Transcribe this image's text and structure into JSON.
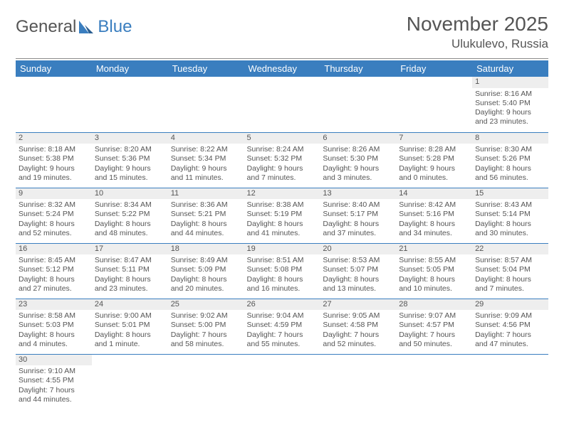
{
  "logo": {
    "text1": "General",
    "text2": "Blue"
  },
  "title": "November 2025",
  "location": "Ulukulevo, Russia",
  "colors": {
    "header_bg": "#3a7ebf",
    "header_text": "#ffffff",
    "body_text": "#555555",
    "daynum_bg": "#eeeeee",
    "rule": "#3a7ebf"
  },
  "weekdays": [
    "Sunday",
    "Monday",
    "Tuesday",
    "Wednesday",
    "Thursday",
    "Friday",
    "Saturday"
  ],
  "weeks": [
    [
      null,
      null,
      null,
      null,
      null,
      null,
      {
        "n": "1",
        "sr": "Sunrise: 8:16 AM",
        "ss": "Sunset: 5:40 PM",
        "dl": "Daylight: 9 hours and 23 minutes."
      }
    ],
    [
      {
        "n": "2",
        "sr": "Sunrise: 8:18 AM",
        "ss": "Sunset: 5:38 PM",
        "dl": "Daylight: 9 hours and 19 minutes."
      },
      {
        "n": "3",
        "sr": "Sunrise: 8:20 AM",
        "ss": "Sunset: 5:36 PM",
        "dl": "Daylight: 9 hours and 15 minutes."
      },
      {
        "n": "4",
        "sr": "Sunrise: 8:22 AM",
        "ss": "Sunset: 5:34 PM",
        "dl": "Daylight: 9 hours and 11 minutes."
      },
      {
        "n": "5",
        "sr": "Sunrise: 8:24 AM",
        "ss": "Sunset: 5:32 PM",
        "dl": "Daylight: 9 hours and 7 minutes."
      },
      {
        "n": "6",
        "sr": "Sunrise: 8:26 AM",
        "ss": "Sunset: 5:30 PM",
        "dl": "Daylight: 9 hours and 3 minutes."
      },
      {
        "n": "7",
        "sr": "Sunrise: 8:28 AM",
        "ss": "Sunset: 5:28 PM",
        "dl": "Daylight: 9 hours and 0 minutes."
      },
      {
        "n": "8",
        "sr": "Sunrise: 8:30 AM",
        "ss": "Sunset: 5:26 PM",
        "dl": "Daylight: 8 hours and 56 minutes."
      }
    ],
    [
      {
        "n": "9",
        "sr": "Sunrise: 8:32 AM",
        "ss": "Sunset: 5:24 PM",
        "dl": "Daylight: 8 hours and 52 minutes."
      },
      {
        "n": "10",
        "sr": "Sunrise: 8:34 AM",
        "ss": "Sunset: 5:22 PM",
        "dl": "Daylight: 8 hours and 48 minutes."
      },
      {
        "n": "11",
        "sr": "Sunrise: 8:36 AM",
        "ss": "Sunset: 5:21 PM",
        "dl": "Daylight: 8 hours and 44 minutes."
      },
      {
        "n": "12",
        "sr": "Sunrise: 8:38 AM",
        "ss": "Sunset: 5:19 PM",
        "dl": "Daylight: 8 hours and 41 minutes."
      },
      {
        "n": "13",
        "sr": "Sunrise: 8:40 AM",
        "ss": "Sunset: 5:17 PM",
        "dl": "Daylight: 8 hours and 37 minutes."
      },
      {
        "n": "14",
        "sr": "Sunrise: 8:42 AM",
        "ss": "Sunset: 5:16 PM",
        "dl": "Daylight: 8 hours and 34 minutes."
      },
      {
        "n": "15",
        "sr": "Sunrise: 8:43 AM",
        "ss": "Sunset: 5:14 PM",
        "dl": "Daylight: 8 hours and 30 minutes."
      }
    ],
    [
      {
        "n": "16",
        "sr": "Sunrise: 8:45 AM",
        "ss": "Sunset: 5:12 PM",
        "dl": "Daylight: 8 hours and 27 minutes."
      },
      {
        "n": "17",
        "sr": "Sunrise: 8:47 AM",
        "ss": "Sunset: 5:11 PM",
        "dl": "Daylight: 8 hours and 23 minutes."
      },
      {
        "n": "18",
        "sr": "Sunrise: 8:49 AM",
        "ss": "Sunset: 5:09 PM",
        "dl": "Daylight: 8 hours and 20 minutes."
      },
      {
        "n": "19",
        "sr": "Sunrise: 8:51 AM",
        "ss": "Sunset: 5:08 PM",
        "dl": "Daylight: 8 hours and 16 minutes."
      },
      {
        "n": "20",
        "sr": "Sunrise: 8:53 AM",
        "ss": "Sunset: 5:07 PM",
        "dl": "Daylight: 8 hours and 13 minutes."
      },
      {
        "n": "21",
        "sr": "Sunrise: 8:55 AM",
        "ss": "Sunset: 5:05 PM",
        "dl": "Daylight: 8 hours and 10 minutes."
      },
      {
        "n": "22",
        "sr": "Sunrise: 8:57 AM",
        "ss": "Sunset: 5:04 PM",
        "dl": "Daylight: 8 hours and 7 minutes."
      }
    ],
    [
      {
        "n": "23",
        "sr": "Sunrise: 8:58 AM",
        "ss": "Sunset: 5:03 PM",
        "dl": "Daylight: 8 hours and 4 minutes."
      },
      {
        "n": "24",
        "sr": "Sunrise: 9:00 AM",
        "ss": "Sunset: 5:01 PM",
        "dl": "Daylight: 8 hours and 1 minute."
      },
      {
        "n": "25",
        "sr": "Sunrise: 9:02 AM",
        "ss": "Sunset: 5:00 PM",
        "dl": "Daylight: 7 hours and 58 minutes."
      },
      {
        "n": "26",
        "sr": "Sunrise: 9:04 AM",
        "ss": "Sunset: 4:59 PM",
        "dl": "Daylight: 7 hours and 55 minutes."
      },
      {
        "n": "27",
        "sr": "Sunrise: 9:05 AM",
        "ss": "Sunset: 4:58 PM",
        "dl": "Daylight: 7 hours and 52 minutes."
      },
      {
        "n": "28",
        "sr": "Sunrise: 9:07 AM",
        "ss": "Sunset: 4:57 PM",
        "dl": "Daylight: 7 hours and 50 minutes."
      },
      {
        "n": "29",
        "sr": "Sunrise: 9:09 AM",
        "ss": "Sunset: 4:56 PM",
        "dl": "Daylight: 7 hours and 47 minutes."
      }
    ],
    [
      {
        "n": "30",
        "sr": "Sunrise: 9:10 AM",
        "ss": "Sunset: 4:55 PM",
        "dl": "Daylight: 7 hours and 44 minutes."
      },
      null,
      null,
      null,
      null,
      null,
      null
    ]
  ]
}
